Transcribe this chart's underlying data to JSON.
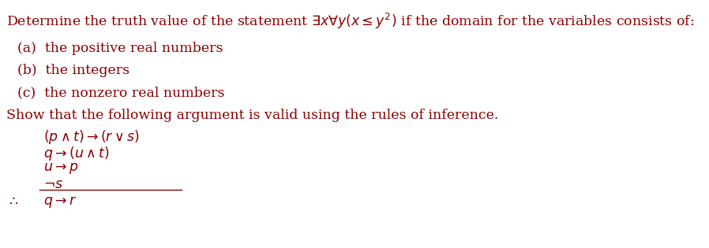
{
  "background_color": "#ffffff",
  "text_color": "#8B0000",
  "line1": "Determine the truth value of the statement $\\exists x\\forall y(x \\leq y^2)$ if the domain for the variables consists of:",
  "item_a": "(a)  the positive real numbers",
  "item_b": "(b)  the integers",
  "item_c": "(c)  the nonzero real numbers",
  "line2": "Show that the following argument is valid using the rules of inference.",
  "premise1": "$(p \\wedge t) \\rightarrow (r \\vee s)$",
  "premise2": "$q \\rightarrow (u \\wedge t)$",
  "premise3": "$u \\rightarrow p$",
  "premise4": "$\\neg s$",
  "conclusion_sym": "$\\therefore$",
  "conclusion_expr": "$q \\rightarrow r$",
  "fontsize_main": 12.5,
  "fontsize_logic": 12.5
}
